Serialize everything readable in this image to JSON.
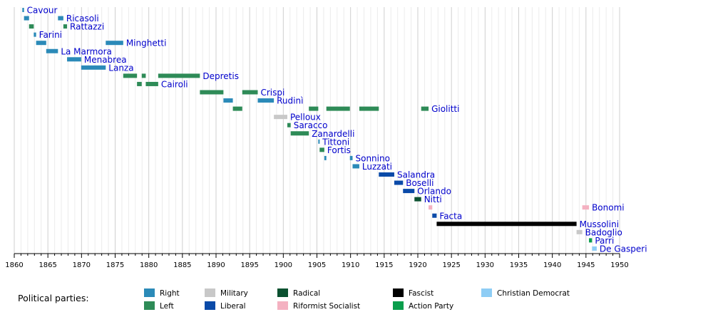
{
  "chart_data": {
    "type": "timeline",
    "x_axis": {
      "min": 1860,
      "max": 1950,
      "major_ticks": [
        1860,
        1865,
        1870,
        1875,
        1880,
        1885,
        1890,
        1895,
        1900,
        1905,
        1910,
        1915,
        1920,
        1925,
        1930,
        1935,
        1940,
        1945,
        1950
      ],
      "minor_step": 1
    },
    "grid": true,
    "legend": {
      "title": "Political parties:",
      "placement": "bottom",
      "entries": [
        {
          "party": "Right",
          "color": "#2b8ab8"
        },
        {
          "party": "Left",
          "color": "#2e8b57"
        },
        {
          "party": "Military",
          "color": "#c8c8c8"
        },
        {
          "party": "Liberal",
          "color": "#0a4aa8"
        },
        {
          "party": "Radical",
          "color": "#0b5130"
        },
        {
          "party": "Riformist Socialist",
          "color": "#f4b1c1"
        },
        {
          "party": "Fascist",
          "color": "#000000"
        },
        {
          "party": "Action Party",
          "color": "#0a9e4c"
        },
        {
          "party": "Christian Democrat",
          "color": "#8ecdf5"
        }
      ]
    },
    "rows": [
      {
        "name": "Cavour",
        "party": "Right",
        "terms": [
          [
            1861.2,
            1861.45
          ]
        ]
      },
      {
        "name": "Ricasoli",
        "party": "Right",
        "terms": [
          [
            1861.45,
            1862.2
          ],
          [
            1866.5,
            1867.3
          ]
        ]
      },
      {
        "name": "Rattazzi",
        "party": "Left",
        "terms": [
          [
            1862.2,
            1862.9
          ],
          [
            1867.3,
            1867.85
          ]
        ]
      },
      {
        "name": "Farini",
        "party": "Right",
        "terms": [
          [
            1862.9,
            1863.25
          ]
        ]
      },
      {
        "name": "Minghetti",
        "party": "Right",
        "terms": [
          [
            1863.25,
            1864.75
          ],
          [
            1873.6,
            1876.2
          ]
        ]
      },
      {
        "name": "La Marmora",
        "party": "Right",
        "terms": [
          [
            1864.75,
            1866.5
          ]
        ]
      },
      {
        "name": "Menabrea",
        "party": "Right",
        "terms": [
          [
            1867.85,
            1869.95
          ]
        ]
      },
      {
        "name": "Lanza",
        "party": "Right",
        "terms": [
          [
            1869.95,
            1873.6
          ]
        ]
      },
      {
        "name": "Depretis",
        "party": "Left",
        "terms": [
          [
            1876.2,
            1878.25
          ],
          [
            1878.95,
            1879.55
          ],
          [
            1881.4,
            1887.6
          ]
        ]
      },
      {
        "name": "Cairoli",
        "party": "Left",
        "terms": [
          [
            1878.25,
            1878.95
          ],
          [
            1879.55,
            1881.4
          ]
        ]
      },
      {
        "name": "Crispi",
        "party": "Left",
        "terms": [
          [
            1887.6,
            1891.1
          ],
          [
            1893.9,
            1896.2
          ]
        ]
      },
      {
        "name": "Rudinì",
        "party": "Right",
        "terms": [
          [
            1891.1,
            1892.5
          ],
          [
            1896.2,
            1898.6
          ]
        ]
      },
      {
        "name": "Giolitti",
        "party": "Left",
        "terms": [
          [
            1892.5,
            1893.9
          ],
          [
            1903.8,
            1905.2
          ],
          [
            1906.4,
            1909.9
          ],
          [
            1911.3,
            1914.2
          ],
          [
            1920.5,
            1921.6
          ]
        ]
      },
      {
        "name": "Pelloux",
        "party": "Military",
        "terms": [
          [
            1898.6,
            1900.6
          ]
        ]
      },
      {
        "name": "Saracco",
        "party": "Left",
        "terms": [
          [
            1900.6,
            1901.1
          ]
        ]
      },
      {
        "name": "Zanardelli",
        "party": "Left",
        "terms": [
          [
            1901.1,
            1903.8
          ]
        ]
      },
      {
        "name": "Tittoni",
        "party": "Right",
        "terms": [
          [
            1905.2,
            1905.4
          ]
        ]
      },
      {
        "name": "Fortis",
        "party": "Left",
        "terms": [
          [
            1905.4,
            1906.1
          ]
        ]
      },
      {
        "name": "Sonnino",
        "party": "Right",
        "terms": [
          [
            1906.1,
            1906.4
          ],
          [
            1909.9,
            1910.3
          ]
        ]
      },
      {
        "name": "Luzzati",
        "party": "Right",
        "terms": [
          [
            1910.3,
            1911.3
          ]
        ]
      },
      {
        "name": "Salandra",
        "party": "Liberal",
        "terms": [
          [
            1914.2,
            1916.5
          ]
        ]
      },
      {
        "name": "Boselli",
        "party": "Liberal",
        "terms": [
          [
            1916.5,
            1917.8
          ]
        ]
      },
      {
        "name": "Orlando",
        "party": "Liberal",
        "terms": [
          [
            1917.8,
            1919.5
          ]
        ]
      },
      {
        "name": "Nitti",
        "party": "Radical",
        "terms": [
          [
            1919.5,
            1920.5
          ]
        ]
      },
      {
        "name": "Bonomi",
        "party": "Riformist Socialist",
        "terms": [
          [
            1921.6,
            1922.15
          ],
          [
            1944.45,
            1945.45
          ]
        ]
      },
      {
        "name": "Facta",
        "party": "Liberal",
        "terms": [
          [
            1922.15,
            1922.8
          ]
        ]
      },
      {
        "name": "Mussolini",
        "party": "Fascist",
        "terms": [
          [
            1922.8,
            1943.6
          ]
        ]
      },
      {
        "name": "Badoglio",
        "party": "Military",
        "terms": [
          [
            1943.6,
            1944.45
          ]
        ]
      },
      {
        "name": "Parri",
        "party": "Action Party",
        "terms": [
          [
            1945.45,
            1945.9
          ]
        ]
      },
      {
        "name": "De Gasperi",
        "party": "Christian Democrat",
        "terms": [
          [
            1945.9,
            1946.6
          ]
        ]
      }
    ]
  }
}
